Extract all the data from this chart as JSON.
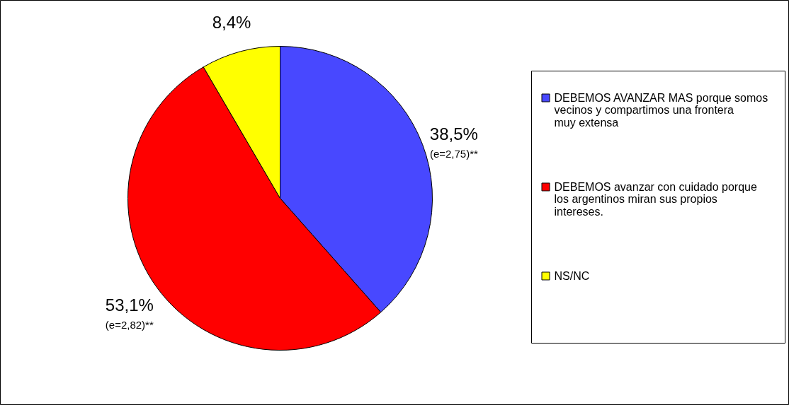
{
  "chart_data": {
    "type": "pie",
    "categories": [
      "DEBEMOS AVANZAR MAS porque somos vecinos y compartimos una frontera muy extensa",
      "DEBEMOS avanzar con cuidado porque los argentinos miran sus propios intereses.",
      "NS/NC"
    ],
    "values": [
      38.5,
      53.1,
      8.4
    ],
    "colors": [
      "#4848ff",
      "#ff0000",
      "#ffff00"
    ],
    "value_labels": [
      "38,5%",
      "53,1%",
      "8,4%"
    ],
    "annotations": [
      "(e=2,75)**",
      "(e=2,82)**"
    ],
    "legend": "right"
  }
}
